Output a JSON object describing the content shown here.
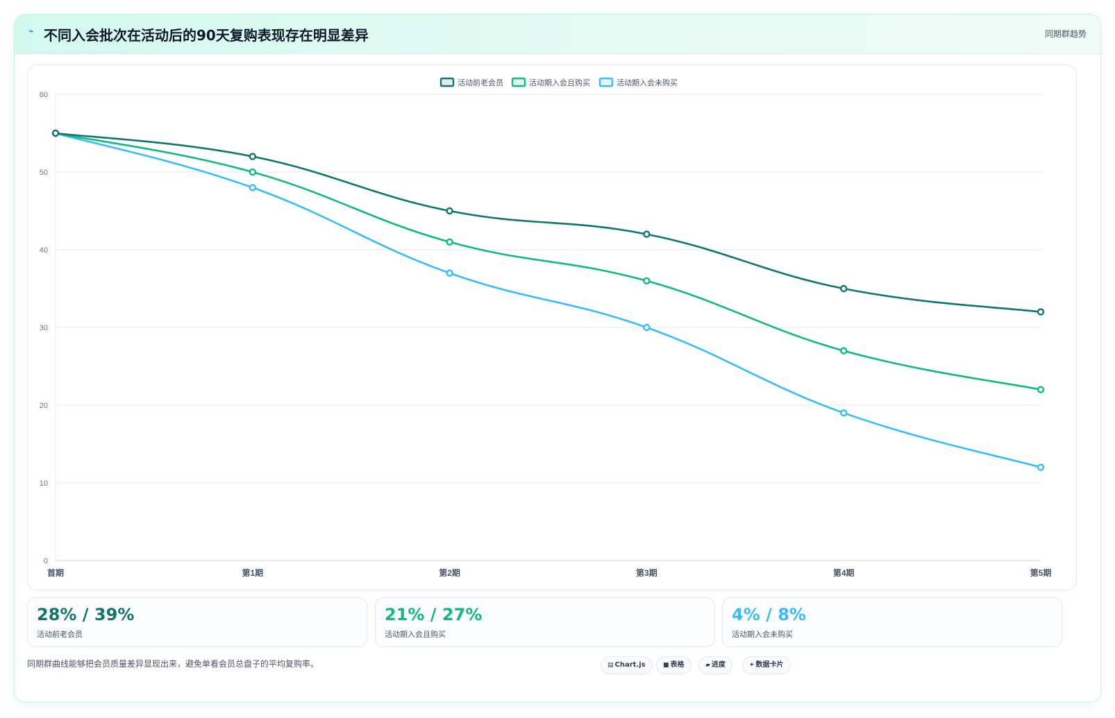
{
  "header": {
    "icon": "chart-spark-icon",
    "title": "不同入会批次在活动后的90天复购表现存在明显差异",
    "tag": "同期群趋势"
  },
  "chart_data": {
    "type": "line",
    "title": "",
    "xlabel": "",
    "ylabel": "",
    "categories": [
      "首期",
      "第1期",
      "第2期",
      "第3期",
      "第4期",
      "第5期"
    ],
    "ylim": [
      0,
      60
    ],
    "yticks": [
      0,
      10,
      20,
      30,
      40,
      50,
      60
    ],
    "grid": true,
    "legend_position": "top-center",
    "series": [
      {
        "name": "活动前老会员",
        "color": "#0f766e",
        "values": [
          55,
          52,
          45,
          42,
          35,
          32
        ]
      },
      {
        "name": "活动期入会且购买",
        "color": "#10b981",
        "values": [
          55,
          50,
          41,
          36,
          27,
          22
        ]
      },
      {
        "name": "活动期入会未购买",
        "color": "#38bdf8",
        "values": [
          55,
          48,
          37,
          30,
          19,
          12
        ]
      }
    ]
  },
  "kpis": [
    {
      "value": "28% / 39%",
      "label": "活动前老会员",
      "color": "#0f766e"
    },
    {
      "value": "21% / 27%",
      "label": "活动期入会且购买",
      "color": "#10b981"
    },
    {
      "value": "4% / 8%",
      "label": "活动期入会未购买",
      "color": "#38bdf8"
    }
  ],
  "footnote": "同期群曲线能够把会员质量差异显现出来，避免单看会员总盘子的平均复购率。",
  "pills": [
    {
      "icon": "chartjs-icon",
      "glyph": "▤",
      "label": "Chart.js"
    },
    {
      "icon": "table-icon",
      "glyph": "■",
      "label": "表格"
    },
    {
      "icon": "progress-icon",
      "glyph": "▰",
      "label": "进度"
    },
    {
      "icon": "sparkle-icon",
      "glyph": "✦",
      "label": "数据卡片"
    }
  ]
}
